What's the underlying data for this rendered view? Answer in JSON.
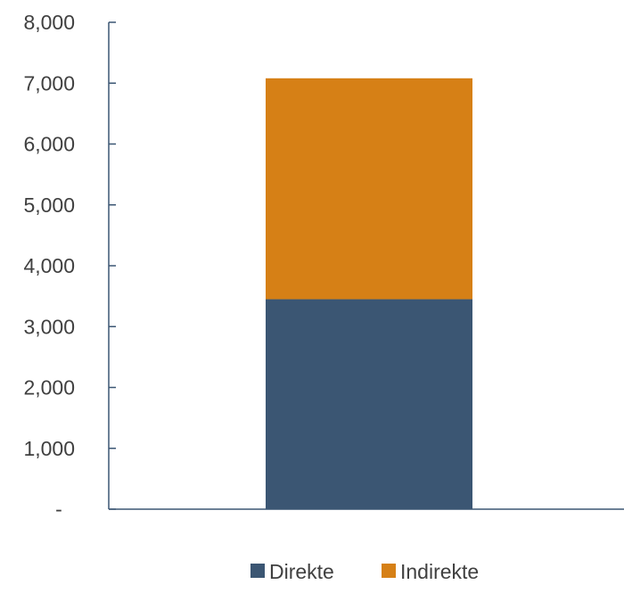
{
  "chart_data": {
    "type": "bar",
    "stacked": true,
    "categories": [
      ""
    ],
    "series": [
      {
        "name": "Direkte",
        "values": [
          3450
        ],
        "color": "#3b5673"
      },
      {
        "name": "Indirekte",
        "values": [
          3630
        ],
        "color": "#d68016"
      }
    ],
    "y_ticks": [
      {
        "value": 0,
        "label": "-"
      },
      {
        "value": 1000,
        "label": "1,000"
      },
      {
        "value": 2000,
        "label": "2,000"
      },
      {
        "value": 3000,
        "label": "3,000"
      },
      {
        "value": 4000,
        "label": "4,000"
      },
      {
        "value": 5000,
        "label": "5,000"
      },
      {
        "value": 6000,
        "label": "6,000"
      },
      {
        "value": 7000,
        "label": "7,000"
      },
      {
        "value": 8000,
        "label": "8,000"
      }
    ],
    "ylim": [
      0,
      8000
    ],
    "grid": false,
    "legend_position": "bottom-center",
    "axis_color": "#3b5673",
    "tick_label_color": "#404040"
  }
}
